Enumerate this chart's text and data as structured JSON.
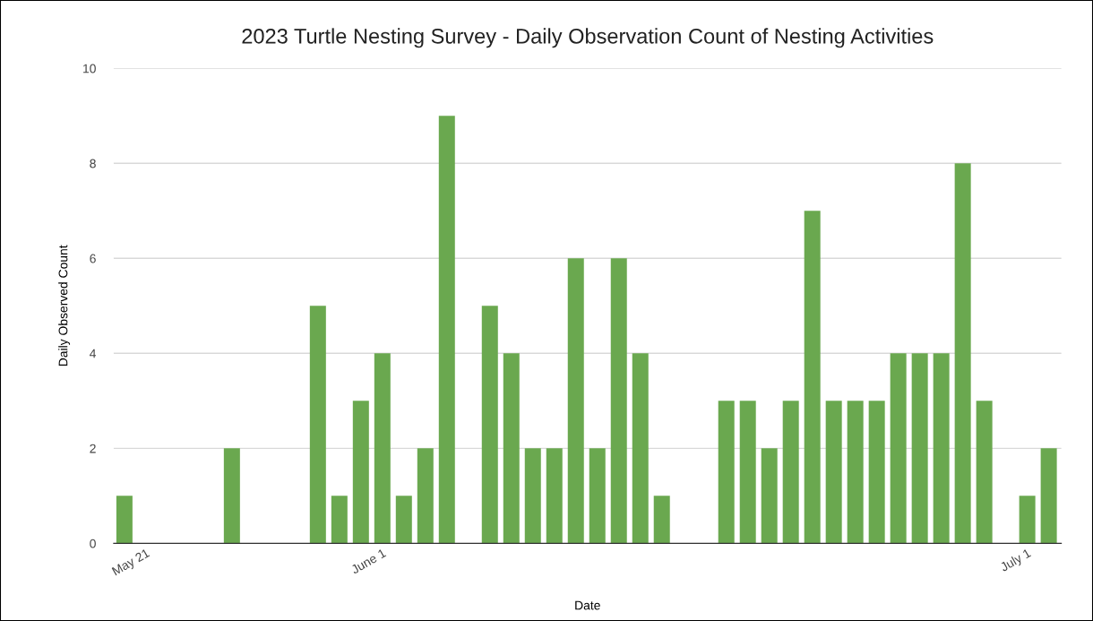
{
  "chart_data": {
    "type": "bar",
    "title": "2023 Turtle Nesting Survey - Daily Observation Count of Nesting Activities",
    "xlabel": "Date",
    "ylabel": "Daily Observed Count",
    "x": [
      "2023-05-20",
      "2023-05-25",
      "2023-05-29",
      "2023-05-30",
      "2023-05-31",
      "2023-06-01",
      "2023-06-02",
      "2023-06-03",
      "2023-06-04",
      "2023-06-06",
      "2023-06-07",
      "2023-06-08",
      "2023-06-09",
      "2023-06-10",
      "2023-06-11",
      "2023-06-12",
      "2023-06-13",
      "2023-06-14",
      "2023-06-17",
      "2023-06-18",
      "2023-06-19",
      "2023-06-20",
      "2023-06-21",
      "2023-06-22",
      "2023-06-23",
      "2023-06-24",
      "2023-06-25",
      "2023-06-26",
      "2023-06-27",
      "2023-06-28",
      "2023-06-29",
      "2023-07-01",
      "2023-07-02"
    ],
    "values": [
      1,
      2,
      5,
      1,
      3,
      4,
      1,
      2,
      9,
      5,
      4,
      2,
      2,
      6,
      2,
      6,
      4,
      1,
      3,
      3,
      2,
      3,
      7,
      3,
      3,
      3,
      4,
      4,
      4,
      8,
      3,
      1,
      2
    ],
    "color": "#6aa84f",
    "xlim": [
      "2023-05-19T12:00",
      "2023-07-02T14:00"
    ],
    "xticks": [
      {
        "value": "2023-05-21",
        "label": "May 21"
      },
      {
        "value": "2023-06-01",
        "label": "June 1"
      },
      {
        "value": "2023-07-01",
        "label": "July 1"
      }
    ],
    "ylim": [
      0,
      10
    ],
    "yticks": [
      0,
      2,
      4,
      6,
      8,
      10
    ],
    "grid": "y",
    "legend": false
  }
}
